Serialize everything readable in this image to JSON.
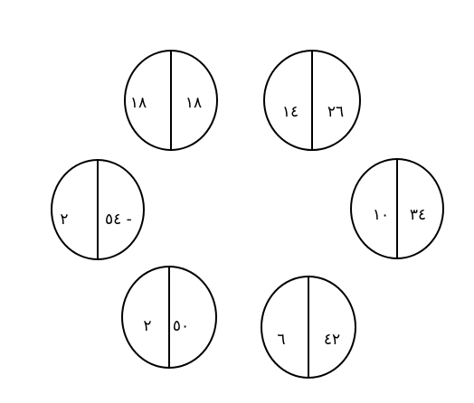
{
  "circles": [
    {
      "id": "top-left",
      "right_value": "١٨",
      "left_value": "١٨"
    },
    {
      "id": "top-right",
      "right_value": "٢٦",
      "left_value": "١٤"
    },
    {
      "id": "middle-left",
      "right_value": "٥٤ -",
      "left_value": "٢"
    },
    {
      "id": "middle-right",
      "right_value": "٣٤",
      "left_value": "١٠"
    },
    {
      "id": "bottom-left",
      "right_value": "٥٠",
      "left_value": "٢"
    },
    {
      "id": "bottom-right",
      "right_value": "٤٢",
      "left_value": "٦"
    }
  ]
}
